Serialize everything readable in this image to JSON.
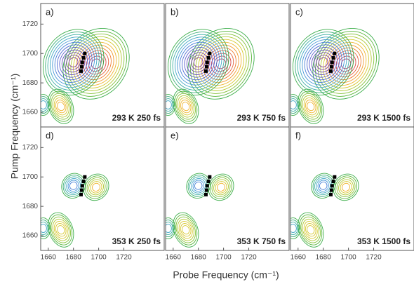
{
  "xlabel": "Probe Frequency (cm⁻¹)",
  "ylabel": "Pump Frequency (cm⁻¹)",
  "chart_data": [
    {
      "type": "contour",
      "panel_label": "a)",
      "annotation": "293 K 250 fs",
      "xlim": [
        1654,
        1752
      ],
      "ylim": [
        1650,
        1734
      ],
      "yticks": [
        1660,
        1680,
        1700,
        1720
      ],
      "markers": {
        "x": [
          1686,
          1686.5,
          1687,
          1688,
          1689
        ],
        "y": [
          1688,
          1691,
          1694,
          1697,
          1700
        ]
      }
    },
    {
      "type": "contour",
      "panel_label": "b)",
      "annotation": "293 K 750 fs",
      "xlim": [
        1654,
        1752
      ],
      "ylim": [
        1650,
        1734
      ],
      "markers": {
        "x": [
          1686,
          1686.5,
          1687,
          1688,
          1689
        ],
        "y": [
          1688,
          1691,
          1694,
          1697,
          1700
        ]
      }
    },
    {
      "type": "contour",
      "panel_label": "c)",
      "annotation": "293 K 1500 fs",
      "xlim": [
        1654,
        1752
      ],
      "ylim": [
        1650,
        1734
      ],
      "markers": {
        "x": [
          1686,
          1686.5,
          1687,
          1688,
          1689
        ],
        "y": [
          1688,
          1691,
          1694,
          1697,
          1700
        ]
      }
    },
    {
      "type": "contour",
      "panel_label": "d)",
      "annotation": "353 K 250 fs",
      "xlim": [
        1654,
        1752
      ],
      "ylim": [
        1650,
        1734
      ],
      "xticks": [
        1660,
        1680,
        1700,
        1720
      ],
      "yticks": [
        1660,
        1680,
        1700,
        1720
      ],
      "markers": {
        "x": [
          1686,
          1686.5,
          1687,
          1688,
          1689
        ],
        "y": [
          1688,
          1691,
          1694,
          1697,
          1700
        ]
      }
    },
    {
      "type": "contour",
      "panel_label": "e)",
      "annotation": "353 K 750 fs",
      "xlim": [
        1654,
        1752
      ],
      "ylim": [
        1650,
        1734
      ],
      "xticks": [
        1660,
        1680,
        1700,
        1720
      ],
      "markers": {
        "x": [
          1686,
          1686.5,
          1687,
          1688,
          1689
        ],
        "y": [
          1688,
          1691,
          1694,
          1697,
          1700
        ]
      }
    },
    {
      "type": "contour",
      "panel_label": "f)",
      "annotation": "353 K 1500 fs",
      "xlim": [
        1654,
        1752
      ],
      "ylim": [
        1650,
        1734
      ],
      "xticks": [
        1660,
        1680,
        1700,
        1720
      ],
      "markers": {
        "x": [
          1686,
          1686.5,
          1687,
          1688,
          1689
        ],
        "y": [
          1688,
          1691,
          1694,
          1697,
          1700
        ]
      }
    }
  ]
}
